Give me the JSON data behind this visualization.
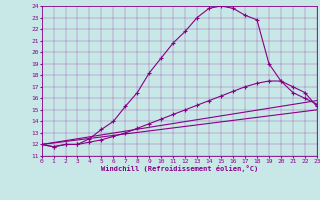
{
  "xlabel": "Windchill (Refroidissement éolien,°C)",
  "xlim": [
    0,
    23
  ],
  "ylim": [
    11,
    24
  ],
  "yticks": [
    11,
    12,
    13,
    14,
    15,
    16,
    17,
    18,
    19,
    20,
    21,
    22,
    23,
    24
  ],
  "xticks": [
    0,
    1,
    2,
    3,
    4,
    5,
    6,
    7,
    8,
    9,
    10,
    11,
    12,
    13,
    14,
    15,
    16,
    17,
    18,
    19,
    20,
    21,
    22,
    23
  ],
  "bg_color": "#c8e8e8",
  "line_color": "#880088",
  "curves": {
    "top": {
      "x": [
        0,
        1,
        2,
        3,
        4,
        5,
        6,
        7,
        8,
        9,
        10,
        11,
        12,
        13,
        14,
        15,
        16,
        17,
        18,
        19,
        20,
        21,
        22,
        23
      ],
      "y": [
        12,
        11.8,
        12,
        12,
        12.5,
        13.3,
        14.0,
        15.3,
        16.5,
        18.2,
        19.5,
        20.8,
        21.8,
        23.0,
        23.8,
        24.0,
        23.8,
        23.2,
        22.8,
        19.0,
        17.5,
        16.5,
        16.0,
        15.5
      ],
      "marker": true
    },
    "mid_upper": {
      "x": [
        0,
        1,
        2,
        3,
        4,
        5,
        6,
        7,
        8,
        9,
        10,
        11,
        12,
        13,
        14,
        15,
        16,
        17,
        18,
        19,
        20,
        21,
        22,
        23
      ],
      "y": [
        12,
        11.8,
        12,
        12,
        12.2,
        12.4,
        12.7,
        13.0,
        13.4,
        13.8,
        14.2,
        14.6,
        15.0,
        15.4,
        15.8,
        16.2,
        16.6,
        17.0,
        17.3,
        17.5,
        17.5,
        17.0,
        16.5,
        15.3
      ],
      "marker": true
    },
    "mid_lower": {
      "x": [
        0,
        23
      ],
      "y": [
        12,
        15.8
      ],
      "marker": false
    },
    "bottom": {
      "x": [
        0,
        23
      ],
      "y": [
        12,
        15.0
      ],
      "marker": false
    }
  }
}
